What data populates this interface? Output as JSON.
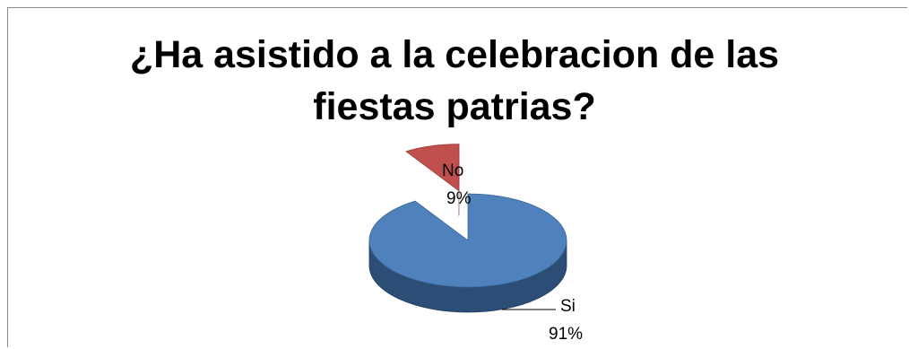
{
  "chart_data": {
    "type": "pie",
    "title": "¿Ha asistido a la celebracion de las fiestas patrias?",
    "title_lines": [
      "¿Ha asistido a la celebracion de las",
      "fiestas patrias?"
    ],
    "three_d": true,
    "slices": [
      {
        "label": "No",
        "percent_label": "9%",
        "value": 9,
        "color": "#C0504D",
        "side_color": "#8E2F2D"
      },
      {
        "label": "Si",
        "percent_label": "91%",
        "value": 91,
        "color": "#4F81BD",
        "side_color": "#2C4D75"
      }
    ]
  }
}
